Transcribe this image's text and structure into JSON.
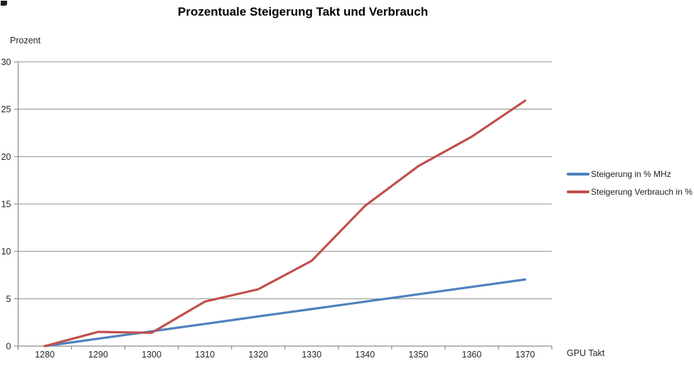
{
  "chart_data": {
    "type": "line",
    "title": "Prozentuale Steigerung Takt und Verbrauch",
    "xlabel": "GPU Takt",
    "ylabel": "Prozent",
    "categories": [
      "1280",
      "1290",
      "1300",
      "1310",
      "1320",
      "1330",
      "1340",
      "1350",
      "1360",
      "1370"
    ],
    "series": [
      {
        "name": "Steigerung in % MHz",
        "color": "#4F81BD",
        "values": [
          0,
          0.78,
          1.56,
          2.34,
          3.13,
          3.91,
          4.69,
          5.47,
          6.25,
          7.03
        ]
      },
      {
        "name": "Steigerung Verbrauch in %",
        "color": "#C0504D",
        "values": [
          0,
          1.5,
          1.4,
          4.7,
          6.0,
          9.0,
          14.8,
          19.0,
          22.1,
          25.9
        ]
      }
    ],
    "ylim": [
      0,
      30
    ],
    "ytick_step": 5,
    "grid": "horizontal",
    "legend_position": "right"
  },
  "colors": {
    "grid": "#8C8C8C",
    "axis": "#8C8C8C",
    "tick_text": "#262626"
  }
}
